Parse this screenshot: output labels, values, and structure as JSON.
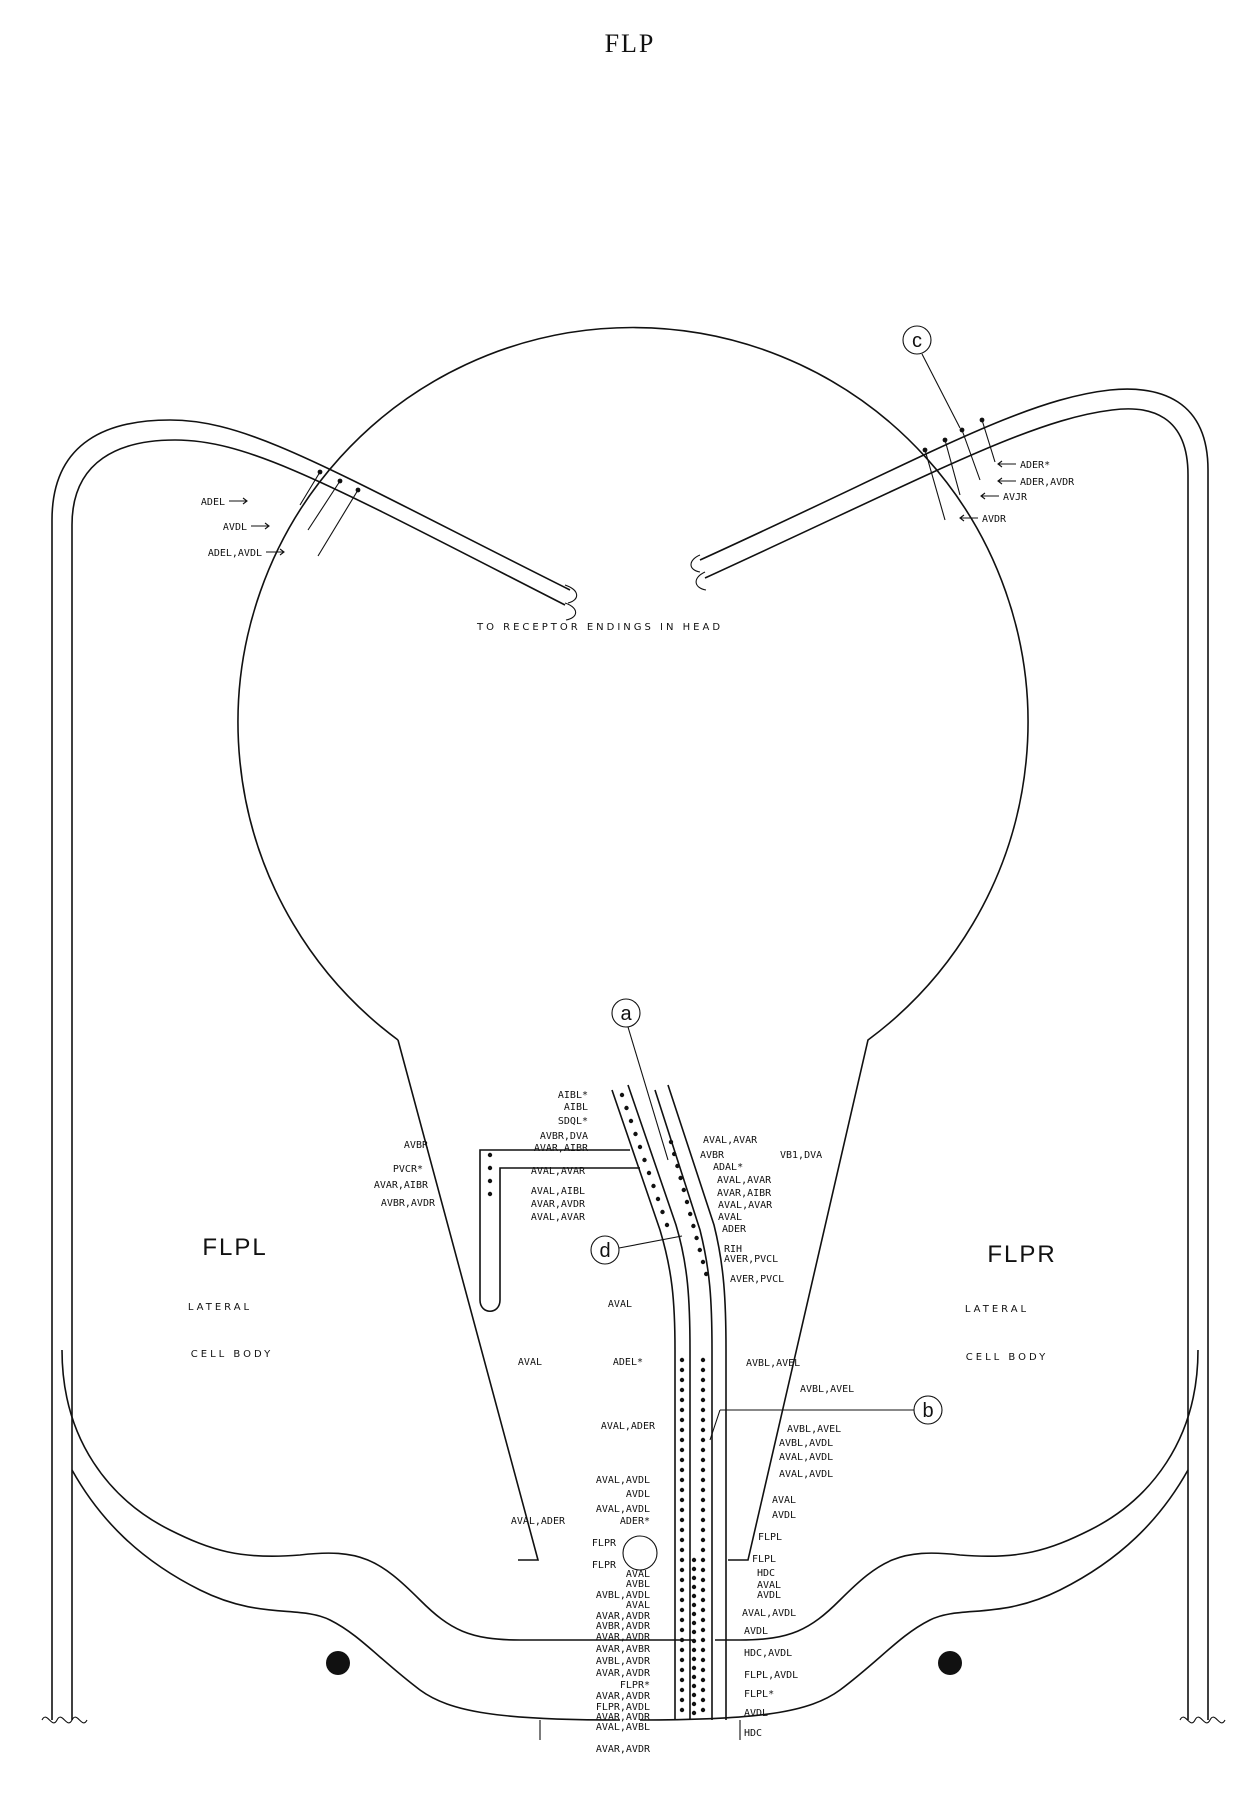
{
  "title": "FLP",
  "center_caption": "TO RECEPTOR ENDINGS IN HEAD",
  "left_cell": {
    "name": "FLPL",
    "line1": "LATERAL",
    "line2": "CELL BODY"
  },
  "right_cell": {
    "name": "FLPR",
    "line1": "LATERAL",
    "line2": "CELL BODY"
  },
  "markers": [
    "a",
    "b",
    "c",
    "d"
  ],
  "left_dendrite_labels": [
    "ADEL",
    "AVDL",
    "ADEL,AVDL"
  ],
  "right_dendrite_labels": [
    "ADER*",
    "ADER,AVDR",
    "AVJR",
    "AVDR"
  ],
  "left_branch_labels": [
    "AVBR",
    "PVCR*",
    "AVAR,AIBR",
    "AVBR,AVDR"
  ],
  "left_inner_labels": [
    "AIBL*",
    "AIBL",
    "SDQL*",
    "AVBR,DVA",
    "AVAR,AIBR",
    "AVAL,AVAR",
    "AVAL,AIBL",
    "AVAR,AVDR",
    "AVAL,AVAR"
  ],
  "right_inner_labels": [
    "AVAL,AVAR",
    "AVBR",
    "VB1,DVA",
    "ADAL*",
    "AVAL,AVAR",
    "AVAR,AIBR",
    "AVAL,AVAR",
    "AVAL",
    "ADER",
    "RIH",
    "AVER,PVCL",
    "AVER,PVCL"
  ],
  "left_mid_labels": [
    "AVAL",
    "AVAL",
    "ADEL*",
    "AVAL,ADER",
    "AVAL,AVDL",
    "AVDL",
    "AVAL,AVDL",
    "ADER*",
    "AVAL,ADER",
    "FLPR",
    "FLPR"
  ],
  "right_mid_labels": [
    "AVBL,AVEL",
    "AVBL,AVEL",
    "AVBL,AVEL",
    "AVBL,AVDL",
    "AVAL,AVDL",
    "AVAL,AVDL",
    "AVAL",
    "AVDL",
    "FLPL",
    "FLPL",
    "HDC",
    "AVAL",
    "AVDL"
  ],
  "left_low_labels": [
    "AVAL",
    "AVBL",
    "AVBL,AVDL",
    "AVAL",
    "AVAR,AVDR",
    "AVBR,AVDR",
    "AVAR,AVDR",
    "AVAR,AVBR",
    "AVBL,AVDR",
    "AVAR,AVDR",
    "FLPR*",
    "AVAR,AVDR",
    "FLPR,AVDL",
    "AVAR,AVDR",
    "AVAL,AVBL",
    "AVAR,AVDR"
  ],
  "right_low_labels": [
    "AVAL,AVDL",
    "AVDL",
    "HDC,AVDL",
    "FLPL,AVDL",
    "FLPL*",
    "AVDL",
    "HDC"
  ]
}
